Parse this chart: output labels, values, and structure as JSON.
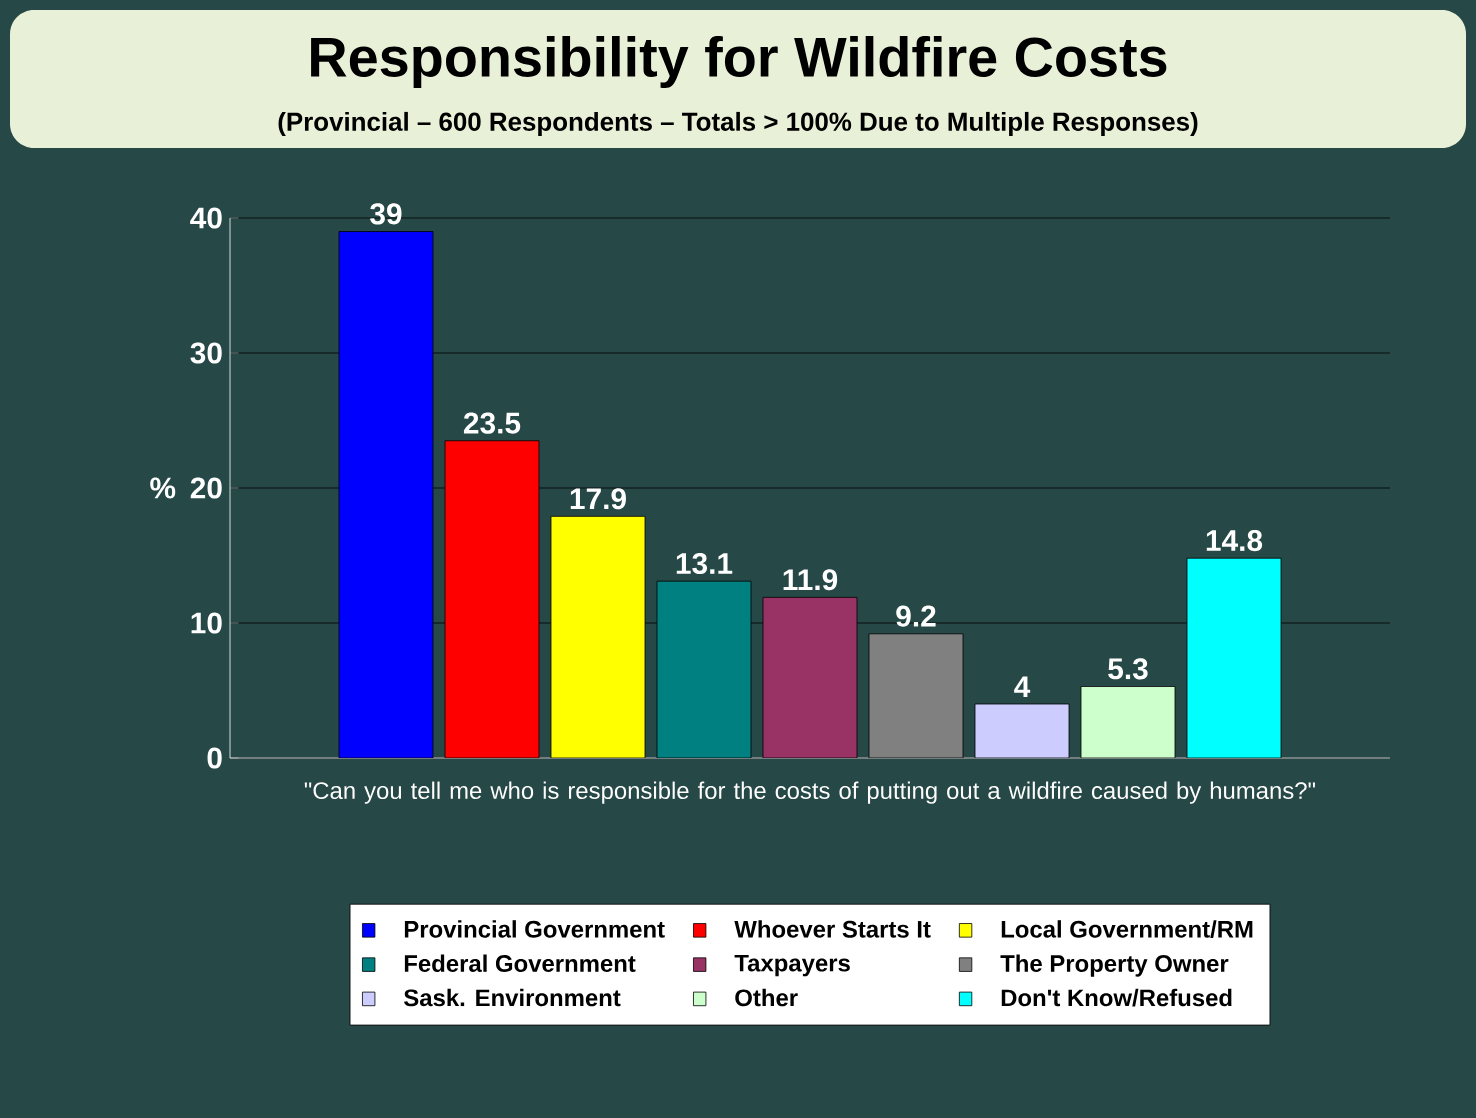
{
  "chart_data": {
    "type": "bar",
    "title": "Responsibility for Wildfire Costs",
    "subtitle": "(Provincial –  600 Respondents – Totals > 100% Due to Multiple Responses)",
    "xlabel": "\"Can you tell me who is responsible for the costs of putting out a wildfire caused by humans?\"",
    "ylabel": "%",
    "categories": [
      null
    ],
    "series": [
      {
        "name": "Provincial Government",
        "color": "#0000ff",
        "values": [
          39
        ]
      },
      {
        "name": "Whoever Starts It",
        "color": "#ff0000",
        "values": [
          23.5
        ]
      },
      {
        "name": "Local Government/RM",
        "color": "#ffff00",
        "values": [
          17.9
        ]
      },
      {
        "name": "Federal Government",
        "color": "#008080",
        "values": [
          13.1
        ]
      },
      {
        "name": "Taxpayers",
        "color": "#993366",
        "values": [
          11.9
        ]
      },
      {
        "name": "The Property Owner",
        "color": "#808080",
        "values": [
          9.2
        ]
      },
      {
        "name": "Sask. Environment",
        "color": "#ccccff",
        "values": [
          4
        ]
      },
      {
        "name": "Other",
        "color": "#ccffcc",
        "values": [
          5.3
        ]
      },
      {
        "name": "Don't Know/Refused",
        "color": "#00ffff",
        "values": [
          14.8
        ]
      }
    ],
    "ylim": [
      0,
      40
    ],
    "yticks": [
      0,
      10,
      20,
      30,
      40
    ],
    "grid": "y",
    "legend": "bottom",
    "data_labels": true
  }
}
